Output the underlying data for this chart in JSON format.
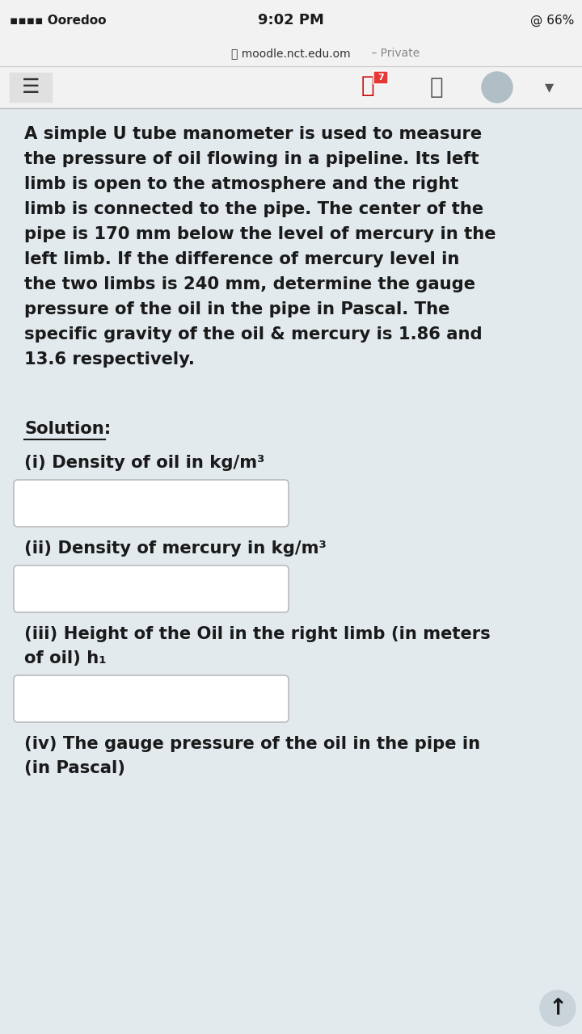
{
  "status_bar_bg": "#f2f2f2",
  "nav_bar_bg": "#f2f2f2",
  "content_bg": "#e2eaee",
  "status_left": "▪▪▪▪ Ooredoo",
  "status_center": "9:02 PM",
  "status_right": "@ 66%",
  "url_text": "moodle.nct.edu.om",
  "url_private": " – Private",
  "solution_label": "Solution:",
  "problem_lines": [
    "A simple U tube manometer is used to measure",
    "the pressure of oil flowing in a pipeline. Its left",
    "limb is open to the atmosphere and the right",
    "limb is connected to the pipe. The center of the",
    "pipe is 170 mm below the level of mercury in the",
    "left limb. If the difference of mercury level in",
    "the two limbs is 240 mm, determine the gauge",
    "pressure of the oil in the pipe in Pascal. The",
    "specific gravity of the oil & mercury is 1.86 and",
    "13.6 respectively."
  ],
  "questions": [
    [
      "(i) Density of oil in kg/m³"
    ],
    [
      "(ii) Density of mercury in kg/m³"
    ],
    [
      "(iii) Height of the Oil in the right limb (in meters",
      "of oil) h₁"
    ],
    [
      "(iv) The gauge pressure of the oil in the pipe in",
      "(in Pascal)"
    ]
  ],
  "show_box": [
    true,
    true,
    true,
    false
  ],
  "text_color": "#1a1a1a",
  "box_bg": "#ffffff",
  "box_border": "#bbbbbb"
}
